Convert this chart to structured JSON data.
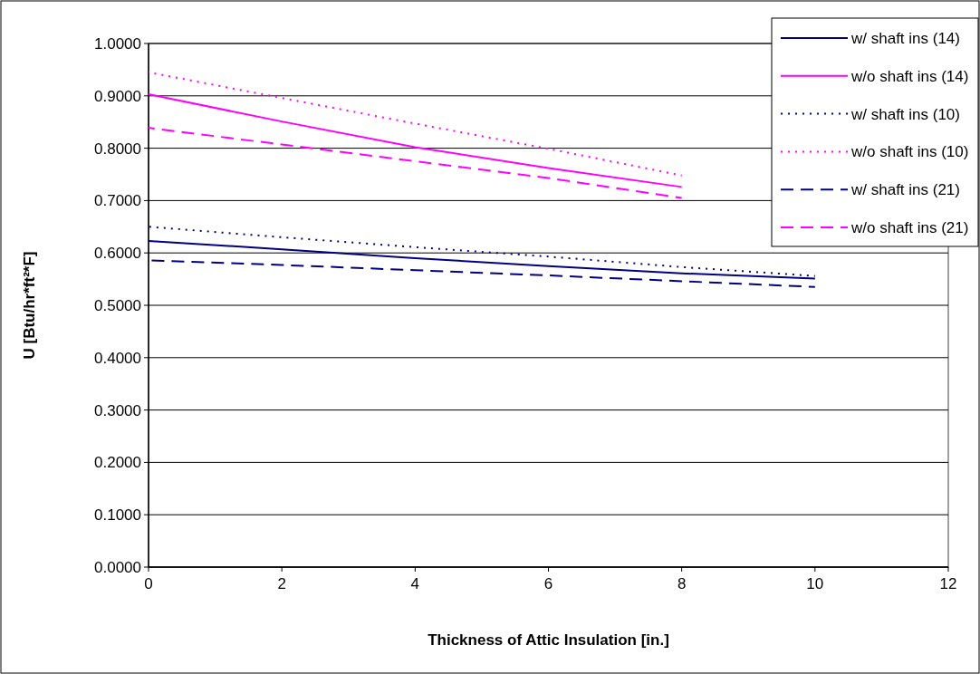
{
  "chart_data": {
    "type": "line",
    "xlabel": "Thickness of Attic Insulation [in.]",
    "ylabel": "U [Btu/hr*ft²*F]",
    "x": [
      0,
      2,
      4,
      6,
      8,
      10
    ],
    "xlim": [
      0,
      12
    ],
    "xticks": [
      0,
      2,
      4,
      6,
      8,
      10,
      12
    ],
    "ylim": [
      0,
      1
    ],
    "yticks": [
      {
        "value": 0,
        "label": "0.0000"
      },
      {
        "value": 0.1,
        "label": "0.1000"
      },
      {
        "value": 0.2,
        "label": "0.2000"
      },
      {
        "value": 0.3,
        "label": "0.3000"
      },
      {
        "value": 0.4,
        "label": "0.4000"
      },
      {
        "value": 0.5,
        "label": "0.5000"
      },
      {
        "value": 0.6,
        "label": "0.6000"
      },
      {
        "value": 0.7,
        "label": "0.7000"
      },
      {
        "value": 0.8,
        "label": "0.8000"
      },
      {
        "value": 0.9,
        "label": "0.9000"
      },
      {
        "value": 1,
        "label": "1.0000"
      }
    ],
    "grid": "y",
    "legend": "top right",
    "marker": "none",
    "series": [
      {
        "name": "w/ shaft ins (14)",
        "color": "#000080",
        "line_style": "solid",
        "values": [
          0.623,
          0.607,
          0.59,
          0.575,
          0.561,
          0.551
        ]
      },
      {
        "name": "w/o shaft ins (14)",
        "color": "#ff00ff",
        "line_style": "solid",
        "values": [
          0.903,
          0.851,
          0.802,
          0.762,
          0.726,
          null
        ]
      },
      {
        "name": "w/ shaft ins (10)",
        "color": "#000080",
        "line_style": "dotted",
        "values": [
          0.65,
          0.63,
          0.611,
          0.593,
          0.573,
          0.556
        ]
      },
      {
        "name": "w/o shaft ins (10)",
        "color": "#ff00ff",
        "line_style": "dotted",
        "values": [
          0.945,
          0.896,
          0.847,
          0.799,
          0.748,
          null
        ]
      },
      {
        "name": "w/ shaft ins (21)",
        "color": "#000080",
        "line_style": "dashed",
        "values": [
          0.586,
          0.577,
          0.567,
          0.557,
          0.546,
          0.535
        ]
      },
      {
        "name": "w/o shaft ins (21)",
        "color": "#ff00ff",
        "line_style": "dashed",
        "values": [
          0.839,
          0.807,
          0.775,
          0.743,
          0.705,
          null
        ]
      }
    ]
  }
}
